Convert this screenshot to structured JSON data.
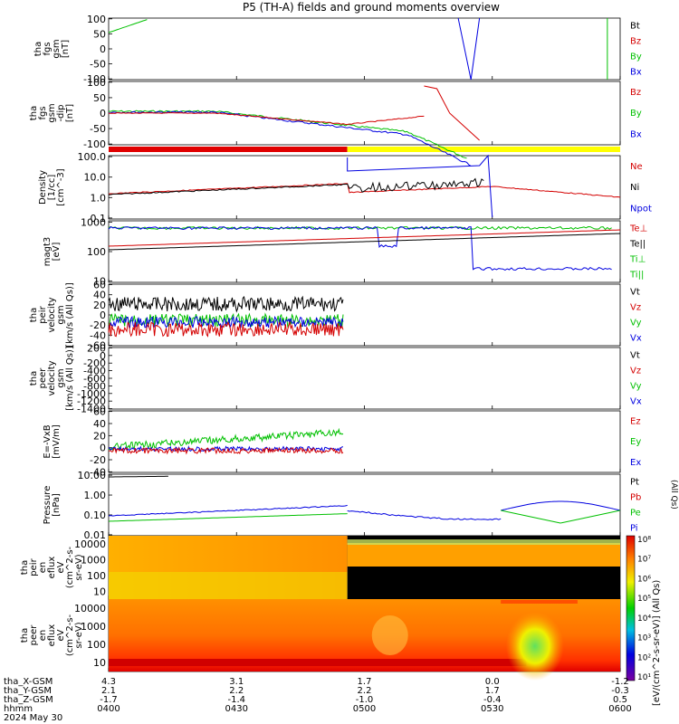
{
  "title": "P5 (TH-A) fields and ground moments overview",
  "chart_data": {
    "type": "line",
    "title": "P5 (TH-A) fields and ground moments overview",
    "x_ticks": [
      "0400",
      "0430",
      "0500",
      "0530",
      "0600"
    ],
    "x_label": "hhmm",
    "date_label": "2024 May 30",
    "position_rows": [
      {
        "label": "tha_X-GSM",
        "values": [
          "4.3",
          "3.1",
          "1.7",
          "0.0",
          "-1.2"
        ]
      },
      {
        "label": "tha_Y-GSM",
        "values": [
          "2.1",
          "2.2",
          "2.2",
          "1.7",
          "-0.3"
        ]
      },
      {
        "label": "tha_Z-GSM",
        "values": [
          "-1.7",
          "-1.4",
          "-1.0",
          "-0.4",
          "0.5"
        ]
      }
    ],
    "panels": [
      {
        "id": "fgs",
        "ylabel": [
          "tha",
          "fgs",
          "gsm",
          "[nT]"
        ],
        "yticks": [
          "100",
          "50",
          "0",
          "-50",
          "-100"
        ],
        "legend": [
          {
            "name": "Bt",
            "color": "#000000"
          },
          {
            "name": "Bz",
            "color": "#d40000"
          },
          {
            "name": "By",
            "color": "#00c000"
          },
          {
            "name": "Bx",
            "color": "#0000e0"
          }
        ]
      },
      {
        "id": "fgs-dip",
        "ylabel": [
          "tha",
          "fgs",
          "gsm",
          "-dip",
          "[nT]"
        ],
        "yticks": [
          "100",
          "50",
          "0",
          "-50",
          "-100"
        ],
        "legend": [
          {
            "name": "Bz",
            "color": "#d40000"
          },
          {
            "name": "By",
            "color": "#00c000"
          },
          {
            "name": "Bx",
            "color": "#0000e0"
          }
        ]
      },
      {
        "id": "density",
        "ylabel": [
          "Density",
          "[1/cc]",
          "[cm^-3]"
        ],
        "yticks": [
          "100.0",
          "10.0",
          "1.0",
          "0.1"
        ],
        "legend": [
          {
            "name": "Ne",
            "color": "#d40000"
          },
          {
            "name": "Ni",
            "color": "#000000"
          },
          {
            "name": "Npot",
            "color": "#0000e0"
          }
        ]
      },
      {
        "id": "temp",
        "ylabel": [
          "magt3",
          "[eV]"
        ],
        "yticks": [
          "1000",
          "100",
          "10"
        ],
        "legend": [
          {
            "name": "Te⊥",
            "color": "#d40000"
          },
          {
            "name": "Te||",
            "color": "#000000"
          },
          {
            "name": "Ti⊥",
            "color": "#00c000"
          },
          {
            "name": "Ti||",
            "color": "#00c000"
          }
        ]
      },
      {
        "id": "peir-vel",
        "ylabel": [
          "tha",
          "peir",
          "velocity",
          "gsm",
          "[km/s (All Qs)]"
        ],
        "yticks": [
          "60",
          "40",
          "20",
          "0",
          "-20",
          "-40",
          "-60"
        ],
        "legend": [
          {
            "name": "Vt",
            "color": "#000000"
          },
          {
            "name": "Vz",
            "color": "#d40000"
          },
          {
            "name": "Vy",
            "color": "#00c000"
          },
          {
            "name": "Vx",
            "color": "#0000e0"
          }
        ]
      },
      {
        "id": "peer-vel",
        "ylabel": [
          "tha",
          "peer",
          "velocity",
          "gsm",
          "[km/s (All Qs)]"
        ],
        "yticks": [
          "200",
          "0",
          "-200",
          "-400",
          "-600",
          "-800",
          "-1000",
          "-1200",
          "-1400"
        ],
        "legend": [
          {
            "name": "Vt",
            "color": "#000000"
          },
          {
            "name": "Vz",
            "color": "#d40000"
          },
          {
            "name": "Vy",
            "color": "#00c000"
          },
          {
            "name": "Vx",
            "color": "#0000e0"
          }
        ]
      },
      {
        "id": "efield",
        "ylabel": [
          "E=-VxB",
          "[mV/m]"
        ],
        "yticks": [
          "60",
          "40",
          "20",
          "0",
          "-20",
          "-40"
        ],
        "legend": [
          {
            "name": "Ez",
            "color": "#d40000"
          },
          {
            "name": "Ey",
            "color": "#00c000"
          },
          {
            "name": "Ex",
            "color": "#0000e0"
          }
        ]
      },
      {
        "id": "pressure",
        "ylabel": [
          "Pressure",
          "[nPa]"
        ],
        "yticks": [
          "10.00",
          "1.00",
          "0.10",
          "0.01"
        ],
        "legend": [
          {
            "name": "Pt",
            "color": "#000000"
          },
          {
            "name": "Pb",
            "color": "#d40000"
          },
          {
            "name": "Pe",
            "color": "#00c000"
          },
          {
            "name": "Pi",
            "color": "#0000e0"
          }
        ],
        "side_label": "(All Qs)"
      },
      {
        "id": "peir-spec",
        "ylabel": [
          "tha",
          "peir",
          "en",
          "eflux",
          "eV",
          "(cm^2-s-",
          "sr-eV)"
        ],
        "yticks": [
          "10000",
          "1000",
          "100",
          "10"
        ]
      },
      {
        "id": "peer-spec",
        "ylabel": [
          "tha",
          "peer",
          "en",
          "eflux",
          "eV",
          "(cm^2-s-",
          "sr-eV)"
        ],
        "yticks": [
          "10000",
          "1000",
          "100",
          "10"
        ]
      }
    ],
    "colorbar": {
      "label": "[eV/(cm^2-s-sr-eV)] (All Qs)",
      "ticks": [
        "10⁸",
        "10⁷",
        "10⁶",
        "10⁵",
        "10⁴",
        "10³",
        "10²",
        "10¹"
      ]
    },
    "status_bar": {
      "red_end_hhmm": "0456",
      "yellow_end_hhmm": "0600"
    }
  }
}
